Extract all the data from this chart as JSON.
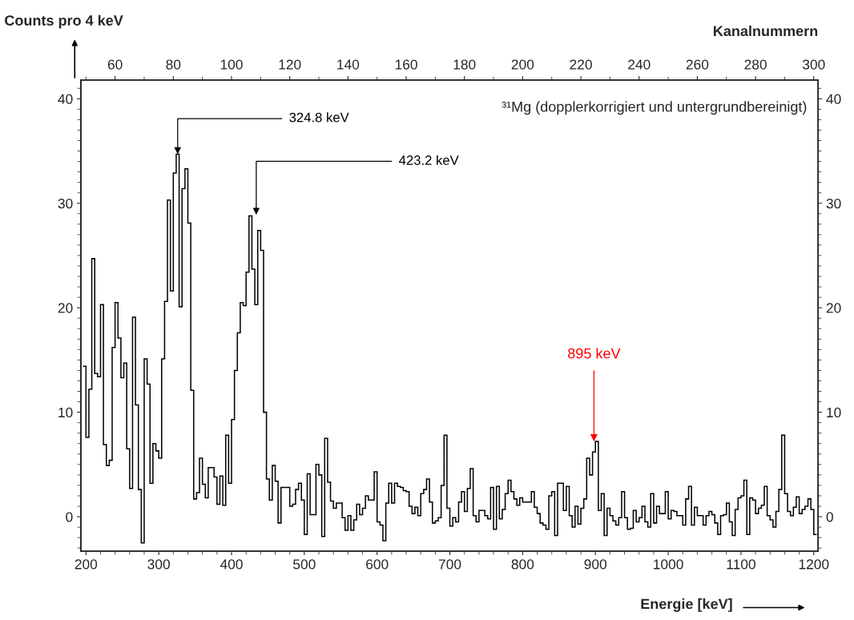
{
  "chart_data": {
    "type": "histogram",
    "xlabel": "Energie [keV]",
    "ylabel": "Counts pro 4 keV",
    "x2label": "Kanalnummern",
    "bins": [
      196,
      200,
      204,
      208,
      212,
      216,
      220,
      224,
      228,
      232,
      236,
      240,
      244,
      248,
      252,
      256,
      260,
      264,
      268,
      272,
      276,
      280,
      284,
      288,
      292,
      296,
      300,
      304,
      308,
      312,
      316,
      320,
      324,
      328,
      332,
      336,
      340,
      344,
      348,
      352,
      356,
      360,
      364,
      368,
      372,
      376,
      380,
      384,
      388,
      392,
      396,
      400,
      404,
      408,
      412,
      416,
      420,
      424,
      428,
      432,
      436,
      440,
      444,
      448,
      452,
      456,
      460,
      464,
      468,
      472,
      476,
      480,
      484,
      488,
      492,
      496,
      500,
      504,
      508,
      512,
      516,
      520,
      524,
      528,
      532,
      536,
      540,
      544,
      548,
      552,
      556,
      560,
      564,
      568,
      572,
      576,
      580,
      584,
      588,
      592,
      596,
      600,
      604,
      608,
      612,
      616,
      620,
      624,
      628,
      632,
      636,
      640,
      644,
      648,
      652,
      656,
      660,
      664,
      668,
      672,
      676,
      680,
      684,
      688,
      692,
      696,
      700,
      704,
      708,
      712,
      716,
      720,
      724,
      728,
      732,
      736,
      740,
      744,
      748,
      752,
      756,
      760,
      764,
      768,
      772,
      776,
      780,
      784,
      788,
      792,
      796,
      800,
      804,
      808,
      812,
      816,
      820,
      824,
      828,
      832,
      836,
      840,
      844,
      848,
      852,
      856,
      860,
      864,
      868,
      872,
      876,
      880,
      884,
      888,
      892,
      896,
      900,
      904,
      908,
      912,
      916,
      920,
      924,
      928,
      932,
      936,
      940,
      944,
      948,
      952,
      956,
      960,
      964,
      968,
      972,
      976,
      980,
      984,
      988,
      992,
      996,
      1000,
      1004,
      1008,
      1012,
      1016,
      1020,
      1024,
      1028,
      1032,
      1036,
      1040,
      1044,
      1048,
      1052,
      1056,
      1060,
      1064,
      1068,
      1072,
      1076,
      1080,
      1084,
      1088,
      1092,
      1096,
      1100,
      1104,
      1108,
      1112,
      1116,
      1120,
      1124,
      1128,
      1132,
      1136,
      1140,
      1144,
      1148,
      1152,
      1156,
      1160,
      1164,
      1168,
      1172,
      1176,
      1180,
      1184,
      1188,
      1192,
      1196,
      1200,
      1204
    ],
    "values": [
      14.4,
      7.6,
      12.2,
      24.7,
      13.7,
      13.4,
      20.3,
      6.9,
      4.9,
      5.4,
      16.2,
      20.5,
      17.1,
      13.3,
      14.7,
      6.5,
      2.7,
      19.1,
      10.7,
      2.6,
      -2.5,
      15.1,
      12.7,
      3.2,
      7.0,
      6.3,
      5.6,
      15.1,
      20.6,
      30.3,
      21.6,
      32.9,
      34.7,
      20.1,
      31.4,
      33.3,
      28.1,
      12.1,
      1.7,
      2.3,
      5.6,
      3.1,
      1.8,
      4.7,
      4.7,
      3.8,
      1.2,
      3.9,
      1.1,
      7.8,
      3.2,
      9.3,
      14.0,
      17.6,
      20.5,
      20.2,
      23.4,
      28.8,
      23.7,
      20.3,
      27.4,
      25.5,
      10.0,
      3.6,
      1.6,
      4.9,
      3.4,
      -0.6,
      2.8,
      2.8,
      2.8,
      1.0,
      1.2,
      2.6,
      3.2,
      1.6,
      -1.7,
      4.1,
      0.2,
      0.2,
      5.0,
      4.0,
      -1.9,
      7.5,
      3.3,
      1.5,
      0.8,
      1.3,
      1.3,
      -0.1,
      -1.3,
      0.1,
      -1.3,
      -0.3,
      1.2,
      0.2,
      0.8,
      2.0,
      1.6,
      1.6,
      4.3,
      -0.5,
      -0.8,
      -2.3,
      1.3,
      3.2,
      1.3,
      3.2,
      2.9,
      2.8,
      2.5,
      2.4,
      1.0,
      0.3,
      0.9,
      0.1,
      2.2,
      2.6,
      3.6,
      1.4,
      -0.6,
      -0.4,
      -0.1,
      3.0,
      7.8,
      0.8,
      -0.9,
      -0.1,
      -0.5,
      1.4,
      2.4,
      0.5,
      2.7,
      4.6,
      0.1,
      -0.5,
      0.6,
      0.6,
      0.1,
      -0.2,
      2.8,
      -1.2,
      2.9,
      -0.2,
      0.7,
      2.2,
      3.5,
      2.4,
      1.7,
      1.1,
      1.8,
      1.4,
      1.4,
      1.4,
      2.4,
      0.9,
      0.3,
      -0.6,
      -0.8,
      -1.2,
      2.0,
      2.4,
      -1.8,
      3.2,
      3.2,
      0.6,
      2.9,
      0.1,
      -1.0,
      1.0,
      -0.7,
      0.8,
      1.7,
      5.6,
      4.0,
      6.2,
      7.2,
      0.6,
      2.2,
      -1.8,
      0.8,
      0.1,
      -0.4,
      -0.8,
      -0.1,
      2.4,
      -0.1,
      -1.2,
      -1.1,
      0.6,
      -0.5,
      -0.1,
      1.0,
      -0.5,
      -1.0,
      2.2,
      -0.6,
      1.0,
      0.3,
      0.3,
      2.4,
      -0.2,
      0.6,
      0.5,
      0.1,
      0.1,
      -0.8,
      1.7,
      2.9,
      -0.8,
      0.9,
      0.1,
      0.1,
      -0.8,
      0.1,
      0.5,
      0.2,
      -0.6,
      -1.7,
      0.1,
      0.2,
      1.3,
      -0.5,
      -1.8,
      0.7,
      1.8,
      2.0,
      3.5,
      -1.7,
      1.8,
      1.6,
      0.3,
      0.8,
      1.1,
      2.9,
      0.1,
      -0.3,
      -1.0,
      0.5,
      2.6,
      7.8,
      2.2,
      0.5,
      0.1,
      0.9,
      1.9,
      0.3,
      0.7,
      1.0,
      1.7,
      0.7,
      -1.7
    ],
    "color": "#000000",
    "xlim": [
      193,
      1206
    ],
    "xticks": [
      200,
      300,
      400,
      500,
      600,
      700,
      800,
      900,
      1000,
      1100,
      1200
    ],
    "ylim": [
      -3.3,
      41.8
    ],
    "yticks": [
      0,
      10,
      20,
      30,
      40
    ],
    "y2lim": [
      -3.3,
      41.8
    ],
    "y2ticks": [
      0,
      10,
      20,
      30,
      40
    ],
    "x2lim": [
      48.25,
      301.5
    ],
    "x2ticks": [
      60,
      80,
      100,
      120,
      140,
      160,
      180,
      200,
      220,
      240,
      260,
      280,
      300
    ],
    "grid": false,
    "legend": false,
    "annotations": [
      {
        "text": "324.8 keV",
        "x": 326,
        "y": 34.7
      },
      {
        "text": "423.2 keV",
        "x": 434,
        "y": 28.9
      },
      {
        "text": "895 keV",
        "x": 898,
        "y": 7.2
      },
      "³¹Mg (dopplerkorrigiert und untergrundbereinigt)"
    ]
  }
}
